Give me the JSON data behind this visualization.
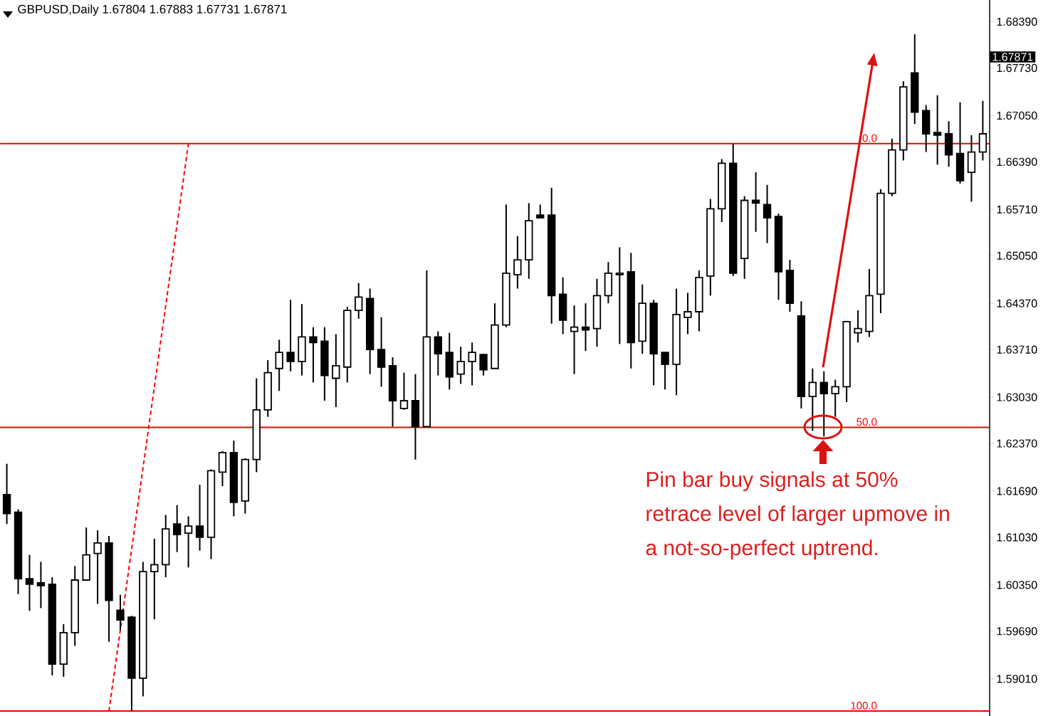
{
  "chart_data": {
    "type": "candlestick",
    "title": "GBPUSD,Daily  1.67804 1.67883 1.67731 1.67871",
    "categories": [
      null,
      null,
      null,
      null,
      null,
      null,
      null,
      null,
      null,
      null,
      null,
      null,
      null,
      null,
      null,
      null,
      null,
      null,
      null,
      null,
      null,
      null,
      null,
      null,
      null,
      null,
      null,
      null,
      null,
      null,
      null,
      null,
      null,
      null,
      null,
      null,
      null,
      null,
      null,
      null,
      null,
      null,
      null,
      null,
      null,
      null,
      null,
      null,
      null,
      null,
      null,
      null,
      null,
      null,
      null,
      null,
      null,
      null,
      null,
      null,
      null,
      null,
      null,
      null,
      null,
      null,
      null,
      null,
      null,
      null,
      null,
      null,
      null,
      null,
      null,
      null,
      null,
      null,
      null,
      null,
      null,
      null,
      null,
      null,
      null,
      null,
      null
    ],
    "ohlc": [
      [
        1.6164,
        1.6208,
        1.6122,
        1.6137
      ],
      [
        1.6139,
        1.6143,
        1.6022,
        1.6044
      ],
      [
        1.6044,
        1.6078,
        1.5998,
        1.6036
      ],
      [
        1.6038,
        1.6068,
        1.6002,
        1.6034
      ],
      [
        1.6036,
        1.6046,
        1.5906,
        1.5922
      ],
      [
        1.5922,
        1.5979,
        1.5904,
        1.5967
      ],
      [
        1.5967,
        1.6062,
        1.5948,
        1.6042
      ],
      [
        1.6042,
        1.6117,
        1.6042,
        1.6078
      ],
      [
        1.608,
        1.6113,
        1.6008,
        1.6095
      ],
      [
        1.6095,
        1.6105,
        1.5954,
        1.6013
      ],
      [
        1.5999,
        1.6021,
        1.5971,
        1.5985
      ],
      [
        1.5989,
        1.5991,
        1.5855,
        1.5902
      ],
      [
        1.5902,
        1.6068,
        1.5876,
        1.6054
      ],
      [
        1.6054,
        1.6101,
        1.5986,
        1.6064
      ],
      [
        1.6064,
        1.6135,
        1.6046,
        1.6115
      ],
      [
        1.6122,
        1.6149,
        1.6082,
        1.6107
      ],
      [
        1.6109,
        1.6133,
        1.606,
        1.6119
      ],
      [
        1.6119,
        1.6178,
        1.6084,
        1.6103
      ],
      [
        1.6103,
        1.62,
        1.6072,
        1.6198
      ],
      [
        1.6196,
        1.6226,
        1.6176,
        1.6224
      ],
      [
        1.6224,
        1.6241,
        1.6133,
        1.6153
      ],
      [
        1.6155,
        1.6216,
        1.6137,
        1.6214
      ],
      [
        1.6214,
        1.633,
        1.6196,
        1.6285
      ],
      [
        1.6285,
        1.6356,
        1.6275,
        1.6338
      ],
      [
        1.6344,
        1.6385,
        1.6312,
        1.6367
      ],
      [
        1.6367,
        1.6442,
        1.634,
        1.6354
      ],
      [
        1.6354,
        1.6436,
        1.6334,
        1.6389
      ],
      [
        1.6389,
        1.6403,
        1.6324,
        1.6381
      ],
      [
        1.6383,
        1.6403,
        1.6298,
        1.6334
      ],
      [
        1.633,
        1.6393,
        1.6289,
        1.6348
      ],
      [
        1.6346,
        1.6432,
        1.6324,
        1.6427
      ],
      [
        1.6427,
        1.6466,
        1.6415,
        1.6446
      ],
      [
        1.6444,
        1.6458,
        1.6336,
        1.6371
      ],
      [
        1.6371,
        1.6417,
        1.6318,
        1.6346
      ],
      [
        1.6348,
        1.636,
        1.6261,
        1.6298
      ],
      [
        1.6287,
        1.6338,
        1.6285,
        1.6298
      ],
      [
        1.6298,
        1.6336,
        1.6214,
        1.6261
      ],
      [
        1.6261,
        1.6484,
        1.6261,
        1.6389
      ],
      [
        1.6389,
        1.6397,
        1.6334,
        1.6365
      ],
      [
        1.6367,
        1.6395,
        1.6314,
        1.6332
      ],
      [
        1.6336,
        1.6375,
        1.6322,
        1.6354
      ],
      [
        1.6354,
        1.6381,
        1.632,
        1.6367
      ],
      [
        1.6364,
        1.6365,
        1.6334,
        1.6342
      ],
      [
        1.6344,
        1.6437,
        1.6344,
        1.6406
      ],
      [
        1.6406,
        1.6578,
        1.6403,
        1.648
      ],
      [
        1.6478,
        1.6533,
        1.6458,
        1.6499
      ],
      [
        1.6499,
        1.658,
        1.6472,
        1.6555
      ],
      [
        1.6563,
        1.6578,
        1.6559,
        1.6559
      ],
      [
        1.6563,
        1.6602,
        1.6408,
        1.6448
      ],
      [
        1.645,
        1.6474,
        1.6393,
        1.6413
      ],
      [
        1.6397,
        1.6434,
        1.6336,
        1.6403
      ],
      [
        1.6403,
        1.6437,
        1.6369,
        1.6399
      ],
      [
        1.6401,
        1.6472,
        1.6375,
        1.6448
      ],
      [
        1.6448,
        1.6496,
        1.6437,
        1.648
      ],
      [
        1.6478,
        1.6517,
        1.6379,
        1.648
      ],
      [
        1.6482,
        1.6509,
        1.6344,
        1.6381
      ],
      [
        1.6383,
        1.6464,
        1.6365,
        1.6437
      ],
      [
        1.6437,
        1.6442,
        1.632,
        1.6365
      ],
      [
        1.6367,
        1.6367,
        1.6314,
        1.635
      ],
      [
        1.635,
        1.6458,
        1.6306,
        1.6421
      ],
      [
        1.6417,
        1.6452,
        1.6393,
        1.6425
      ],
      [
        1.6425,
        1.6484,
        1.6397,
        1.6474
      ],
      [
        1.6476,
        1.6586,
        1.6448,
        1.6572
      ],
      [
        1.6572,
        1.6643,
        1.6553,
        1.6637
      ],
      [
        1.6637,
        1.6665,
        1.6476,
        1.648
      ],
      [
        1.6501,
        1.659,
        1.6472,
        1.6584
      ],
      [
        1.6584,
        1.6624,
        1.6539,
        1.658
      ],
      [
        1.6578,
        1.6606,
        1.6523,
        1.6559
      ],
      [
        1.6561,
        1.6565,
        1.6442,
        1.6482
      ],
      [
        1.6484,
        1.6499,
        1.6425,
        1.6437
      ],
      [
        1.6419,
        1.644,
        1.6287,
        1.6304
      ],
      [
        1.6304,
        1.6344,
        1.6255,
        1.6324
      ],
      [
        1.6324,
        1.634,
        1.6247,
        1.6308
      ],
      [
        1.6308,
        1.6328,
        1.6275,
        1.6318
      ],
      [
        1.6318,
        1.6412,
        1.6296,
        1.6411
      ],
      [
        1.6395,
        1.6427,
        1.6381,
        1.6401
      ],
      [
        1.6397,
        1.6486,
        1.6389,
        1.6448
      ],
      [
        1.645,
        1.66,
        1.6423,
        1.6594
      ],
      [
        1.6594,
        1.6672,
        1.659,
        1.6656
      ],
      [
        1.6656,
        1.6754,
        1.6641,
        1.6746
      ],
      [
        1.6766,
        1.6821,
        1.6693,
        1.671
      ],
      [
        1.6712,
        1.672,
        1.6653,
        1.6679
      ],
      [
        1.6681,
        1.6734,
        1.6635,
        1.6677
      ],
      [
        1.6679,
        1.6697,
        1.6632,
        1.6649
      ],
      [
        1.6651,
        1.6724,
        1.6608,
        1.6612
      ],
      [
        1.6624,
        1.6677,
        1.6582,
        1.6653
      ],
      [
        1.6653,
        1.6726,
        1.6641,
        1.6679
      ]
    ],
    "series": [
      {
        "type": "line",
        "values": [
          null,
          null,
          null,
          null,
          null,
          null,
          null,
          null,
          null,
          1.5855,
          null,
          null,
          null,
          null,
          null,
          null,
          1.6665,
          null,
          null,
          null,
          null,
          null,
          null,
          null,
          null,
          null,
          null,
          null,
          null,
          null,
          null,
          null,
          null,
          null,
          null,
          null,
          null,
          null,
          null,
          null,
          null,
          null,
          null,
          null,
          null,
          null,
          null,
          null,
          null,
          null,
          null,
          null,
          null,
          null,
          null,
          null,
          null,
          null,
          null,
          null,
          null,
          null,
          null,
          null,
          null,
          null,
          null,
          null,
          null,
          null,
          null,
          null,
          null,
          null,
          null,
          null,
          null,
          null,
          null,
          null,
          null,
          null,
          null,
          null,
          null,
          null,
          null
        ],
        "color": "#ff0000",
        "line_style": "dashed"
      }
    ],
    "ylim": [
      1.5848,
      1.687
    ],
    "yticks": [
      {
        "value": 1.6839,
        "label": "1.68390"
      },
      {
        "value": 1.6773,
        "label": "1.67730"
      },
      {
        "value": 1.6705,
        "label": "1.67050"
      },
      {
        "value": 1.6639,
        "label": "1.66390"
      },
      {
        "value": 1.6571,
        "label": "1.65710"
      },
      {
        "value": 1.6505,
        "label": "1.65050"
      },
      {
        "value": 1.6437,
        "label": "1.64370"
      },
      {
        "value": 1.6371,
        "label": "1.63710"
      },
      {
        "value": 1.6303,
        "label": "1.63030"
      },
      {
        "value": 1.6237,
        "label": "1.62370"
      },
      {
        "value": 1.6169,
        "label": "1.61690"
      },
      {
        "value": 1.6103,
        "label": "1.61030"
      },
      {
        "value": 1.6035,
        "label": "1.60350"
      },
      {
        "value": 1.5969,
        "label": "1.59690"
      },
      {
        "value": 1.5901,
        "label": "1.59010"
      }
    ],
    "ref_lines": [
      {
        "axis": "y",
        "value": 1.6665,
        "color": "#ff0000"
      },
      {
        "axis": "y",
        "value": 1.626,
        "color": "#ff0000"
      },
      {
        "axis": "y",
        "value": 1.5855,
        "color": "#ff0000"
      }
    ],
    "annotations": [
      "1.67871",
      "Pin bar buy signals at 50%",
      "retrace level of larger upmove in",
      "a not-so-perfect uptrend.",
      {
        "text": "0.0",
        "y": 1.6665
      },
      {
        "text": "50.0",
        "y": 1.626
      },
      {
        "text": "100.0",
        "y": 1.5855
      }
    ],
    "tick_labels": "y"
  }
}
